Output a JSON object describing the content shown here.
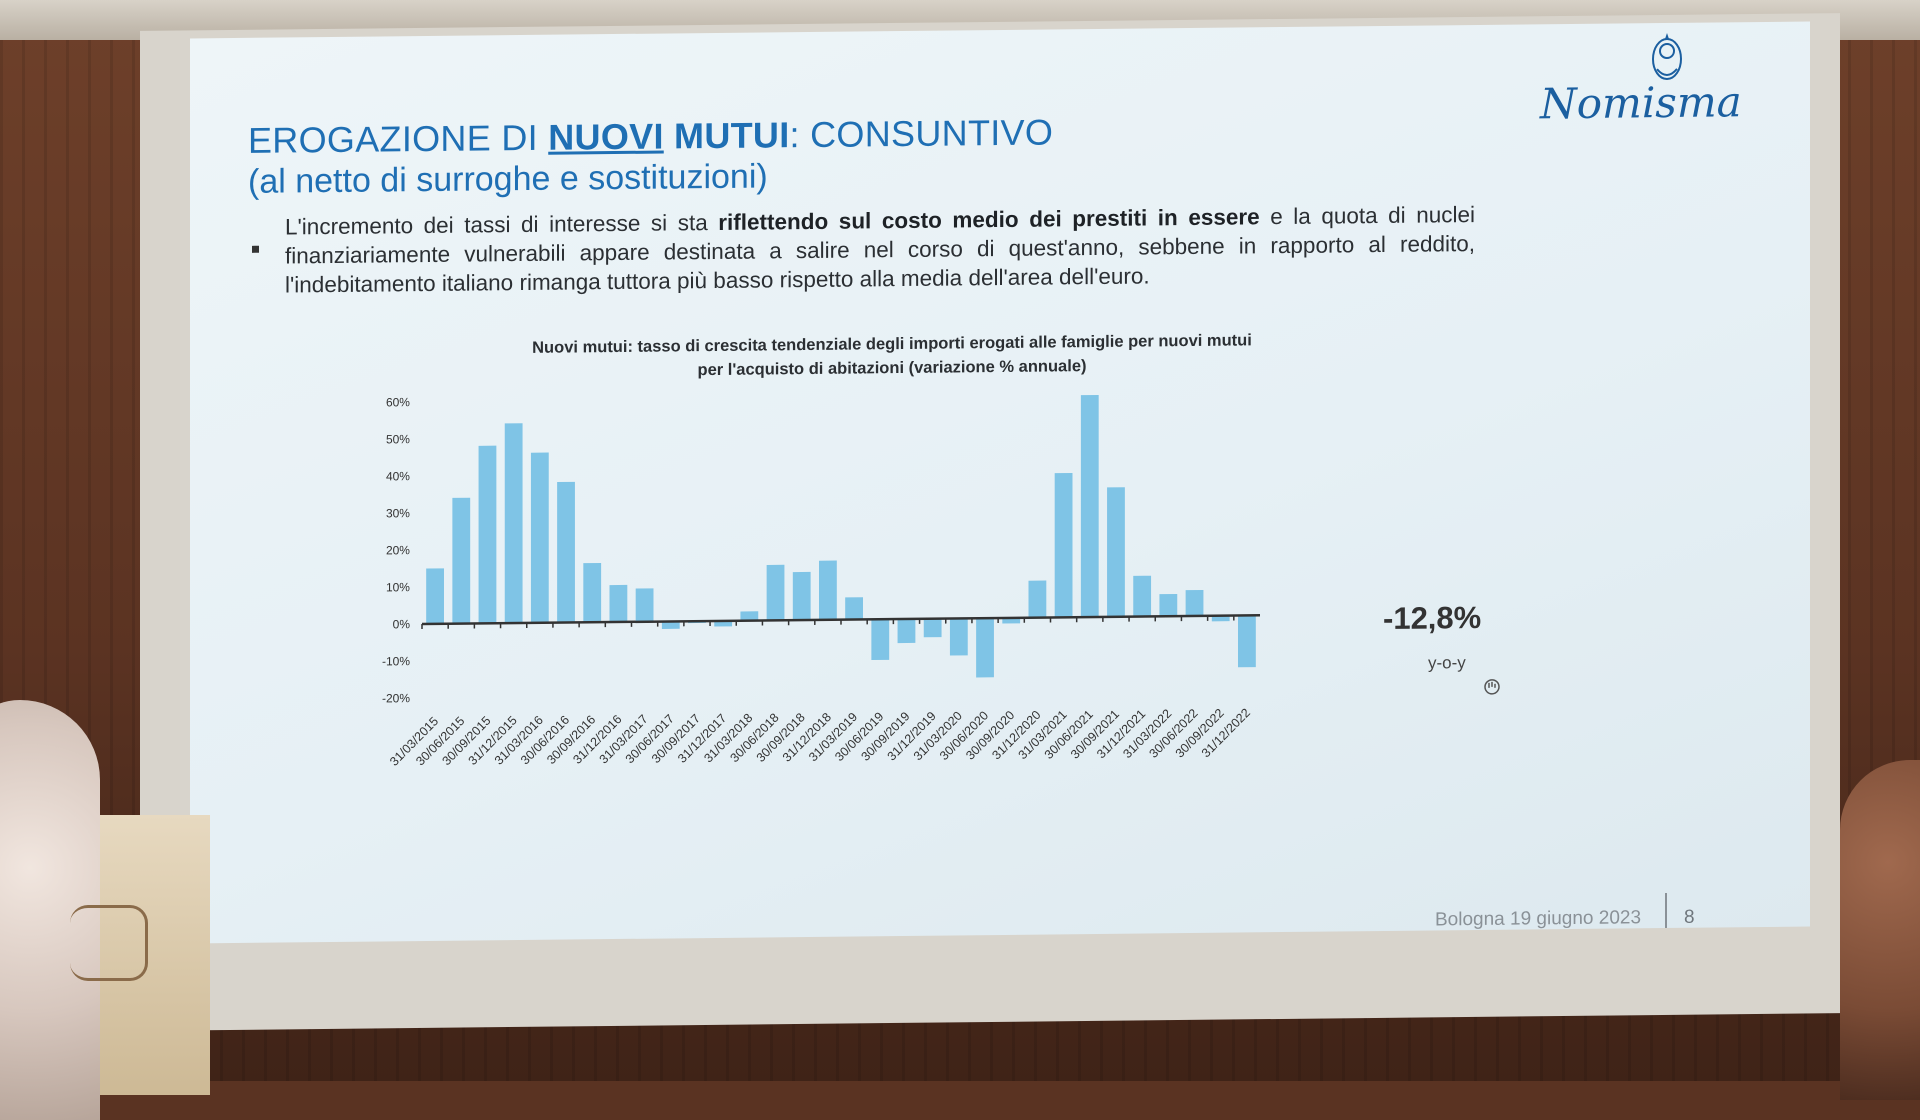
{
  "slide": {
    "title_part1": "EROGAZIONE DI ",
    "title_underlined": "NUOVI",
    "title_bold": " MUTUI",
    "title_rest": ": CONSUNTIVO",
    "subtitle": "(al netto di surroghe e sostituzioni)",
    "logo": "Nomisma",
    "bullet_pre": "L'incremento dei tassi di interesse si sta ",
    "bullet_bold": "riflettendo sul costo medio dei prestiti in essere",
    "bullet_post": " e la quota di nuclei finanziariamente vulnerabili appare destinata a salire nel corso di quest'anno, sebbene in rapporto al reddito, l'indebitamento italiano rimanga tuttora più basso rispetto alla media dell'area dell'euro.",
    "callout_value": "-12,8%",
    "callout_sub": "y-o-y",
    "footer_text": "Bologna 19 giugno 2023",
    "page_number": "8"
  },
  "colors": {
    "title": "#1f6fb4",
    "bar": "#7fc4e6",
    "axis": "#333333"
  },
  "chart_data": {
    "type": "bar",
    "title_line1": "Nuovi mutui: tasso di crescita tendenziale degli importi erogati alle famiglie per nuovi mutui",
    "title_line2": "per l'acquisto di abitazioni (variazione % annuale)",
    "ylim": [
      -20,
      60
    ],
    "yticks": [
      "60%",
      "50%",
      "40%",
      "30%",
      "20%",
      "10%",
      "0%",
      "-10%",
      "-20%"
    ],
    "ytick_values": [
      60,
      50,
      40,
      30,
      20,
      10,
      0,
      -10,
      -20
    ],
    "categories": [
      "31/03/2015",
      "30/06/2015",
      "30/09/2015",
      "31/12/2015",
      "31/03/2016",
      "30/06/2016",
      "30/09/2016",
      "31/12/2016",
      "31/03/2017",
      "30/06/2017",
      "30/09/2017",
      "31/12/2017",
      "31/03/2018",
      "30/06/2018",
      "30/09/2018",
      "31/12/2018",
      "31/03/2019",
      "30/06/2019",
      "30/09/2019",
      "31/12/2019",
      "31/03/2020",
      "30/06/2020",
      "30/09/2020",
      "31/12/2020",
      "31/03/2021",
      "30/06/2021",
      "30/09/2021",
      "31/12/2021",
      "31/03/2022",
      "30/06/2022",
      "30/09/2022",
      "31/12/2022"
    ],
    "values": [
      15,
      34,
      48,
      54,
      46,
      38,
      16,
      10,
      9,
      -2,
      -0.5,
      -1.5,
      2.5,
      15,
      13,
      16,
      6,
      -11,
      -6.5,
      -5,
      -10,
      -16,
      -1.5,
      10,
      39,
      60,
      35,
      11,
      6,
      7,
      -1.5,
      -14
    ],
    "grid": false,
    "legend": "none"
  }
}
